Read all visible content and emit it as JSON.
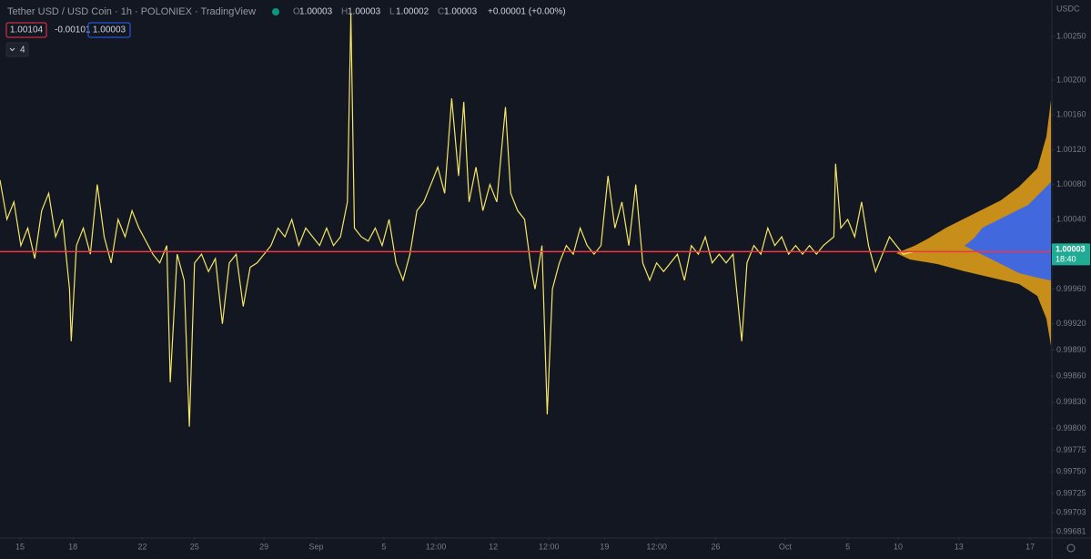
{
  "chart_data": {
    "type": "line",
    "title": "Tether USD / USD Coin · 1h · POLONIEX · TradingView",
    "ohlc": [
      {
        "label": "O",
        "value": "1.00003"
      },
      {
        "label": "H",
        "value": "1.00003"
      },
      {
        "label": "L",
        "value": "1.00002"
      },
      {
        "label": "C",
        "value": "1.00003"
      }
    ],
    "change": "+0.00001 (+0.00%)",
    "badges": [
      "1.00104",
      "-0.00101",
      "1.00003"
    ],
    "indicator_count": "4",
    "currency": "USDC",
    "last_price": 1.00003,
    "countdown": "18:40",
    "price_line_color": "#f23645",
    "series": [
      {
        "name": "USDTUSDC",
        "color": "#f5e663",
        "x": [
          0,
          0.4,
          0.8,
          1.2,
          1.6,
          2.0,
          2.4,
          2.8,
          3.2,
          3.6,
          4.0,
          4.1,
          4.4,
          4.8,
          5.2,
          5.6,
          6.0,
          6.4,
          6.8,
          7.2,
          7.6,
          8.0,
          8.4,
          8.8,
          9.2,
          9.6,
          9.8,
          10.2,
          10.6,
          10.9,
          11.2,
          11.6,
          12.0,
          12.4,
          12.8,
          13.2,
          13.6,
          14.0,
          14.4,
          14.8,
          15.2,
          15.6,
          16.0,
          16.4,
          16.8,
          17.2,
          17.6,
          18.0,
          18.4,
          18.8,
          19.2,
          19.6,
          20.0,
          20.2,
          20.4,
          20.8,
          21.2,
          21.6,
          22.0,
          22.4,
          22.8,
          23.2,
          23.6,
          24.0,
          24.4,
          24.8,
          25.2,
          25.6,
          26.0,
          26.4,
          26.7,
          27.0,
          27.4,
          27.8,
          28.2,
          28.6,
          29.1,
          29.4,
          29.8,
          30.2,
          30.6,
          30.8,
          31.2,
          31.5,
          31.8,
          32.2,
          32.6,
          33.0,
          33.4,
          33.8,
          34.2,
          34.6,
          35.0,
          35.4,
          35.8,
          36.2,
          36.6,
          37.0,
          37.4,
          37.8,
          38.2,
          38.6,
          39.0,
          39.4,
          39.8,
          40.2,
          40.6,
          41.0,
          41.4,
          41.8,
          42.2,
          42.7,
          43.0,
          43.4,
          43.8,
          44.2,
          44.6,
          45.0,
          45.4,
          45.8,
          46.2,
          46.6,
          47.0,
          47.4,
          48.0,
          48.1,
          48.4,
          48.8,
          49.2,
          49.6,
          50.0,
          50.4,
          50.8,
          51.2,
          51.6,
          52.0,
          52.6
        ],
        "values": [
          1.00085,
          1.0004,
          1.0006,
          1.0001,
          1.0003,
          0.99995,
          1.0005,
          1.0007,
          1.0002,
          1.0004,
          0.9996,
          0.999,
          1.0001,
          1.0003,
          1.0,
          1.0008,
          1.0002,
          0.9999,
          1.0004,
          1.0002,
          1.0005,
          1.0003,
          1.00015,
          1.0,
          0.9999,
          1.0001,
          0.99853,
          1.0,
          0.9997,
          0.99802,
          0.9999,
          1.0,
          0.9998,
          0.99995,
          0.9992,
          0.9999,
          1.0,
          0.9994,
          0.99985,
          0.9999,
          1.0,
          1.0001,
          1.0003,
          1.0002,
          1.0004,
          1.0001,
          1.0003,
          1.0002,
          1.0001,
          1.0003,
          1.0001,
          1.0002,
          1.0006,
          1.00276,
          1.0003,
          1.0002,
          1.00015,
          1.0003,
          1.0001,
          1.0004,
          0.9999,
          0.9997,
          1.0,
          1.0005,
          1.0006,
          1.0008,
          1.001,
          1.0007,
          1.00179,
          1.0009,
          1.00175,
          1.0006,
          1.001,
          1.0005,
          1.0008,
          1.0006,
          1.00169,
          1.0007,
          1.0005,
          1.0004,
          0.9998,
          0.9996,
          1.0001,
          0.99816,
          0.9996,
          0.9999,
          1.0001,
          1.0,
          1.0003,
          1.0001,
          1.0,
          1.0001,
          1.0009,
          1.0003,
          1.0006,
          1.0001,
          1.0008,
          0.9999,
          0.9997,
          0.9999,
          0.9998,
          0.9999,
          1.0,
          0.9997,
          1.0001,
          1.0,
          1.0002,
          0.9999,
          1.0,
          0.9999,
          1.0,
          0.999,
          0.9999,
          1.0001,
          1.0,
          1.0003,
          1.0001,
          1.0002,
          1.0,
          1.0001,
          1.0,
          1.0001,
          1.0,
          1.0001,
          1.0002,
          1.00104,
          1.0003,
          1.0004,
          1.0002,
          1.0006,
          1.0001,
          0.9998,
          1.0,
          1.0002,
          1.0001,
          1.0,
          1.00003
        ]
      }
    ],
    "xlim": [
      0,
      60.5
    ],
    "xticks": [
      {
        "value": 1.15,
        "label": "15"
      },
      {
        "value": 4.2,
        "label": "18"
      },
      {
        "value": 8.2,
        "label": "22"
      },
      {
        "value": 11.2,
        "label": "25"
      },
      {
        "value": 15.2,
        "label": "29"
      },
      {
        "value": 18.2,
        "label": "Sep"
      },
      {
        "value": 22.1,
        "label": "5"
      },
      {
        "value": 25.1,
        "label": "12:00"
      },
      {
        "value": 28.4,
        "label": "12"
      },
      {
        "value": 31.6,
        "label": "12:00"
      },
      {
        "value": 34.8,
        "label": "19"
      },
      {
        "value": 37.8,
        "label": "12:00"
      },
      {
        "value": 41.2,
        "label": "26"
      },
      {
        "value": 45.2,
        "label": "Oct"
      },
      {
        "value": 48.8,
        "label": "5"
      },
      {
        "value": 51.7,
        "label": "10"
      },
      {
        "value": 55.2,
        "label": "13"
      },
      {
        "value": 59.3,
        "label": "17"
      }
    ],
    "ylim": [
      0.99675,
      1.00292
    ],
    "yticks": [
      {
        "value": 1.0025,
        "label": "1.00250"
      },
      {
        "value": 1.002,
        "label": "1.00200"
      },
      {
        "value": 1.0016,
        "label": "1.00160"
      },
      {
        "value": 1.0012,
        "label": "1.00120"
      },
      {
        "value": 1.0008,
        "label": "1.00080"
      },
      {
        "value": 1.0004,
        "label": "1.00040"
      },
      {
        "value": 0.9996,
        "label": "0.99960"
      },
      {
        "value": 0.9992,
        "label": "0.99920"
      },
      {
        "value": 0.9989,
        "label": "0.99890"
      },
      {
        "value": 0.9986,
        "label": "0.99860"
      },
      {
        "value": 0.9983,
        "label": "0.99830"
      },
      {
        "value": 0.998,
        "label": "0.99800"
      },
      {
        "value": 0.99775,
        "label": "0.99775"
      },
      {
        "value": 0.9975,
        "label": "0.99750"
      },
      {
        "value": 0.99725,
        "label": "0.99725"
      },
      {
        "value": 0.99703,
        "label": "0.99703"
      },
      {
        "value": 0.99681,
        "label": "0.99681"
      }
    ]
  }
}
